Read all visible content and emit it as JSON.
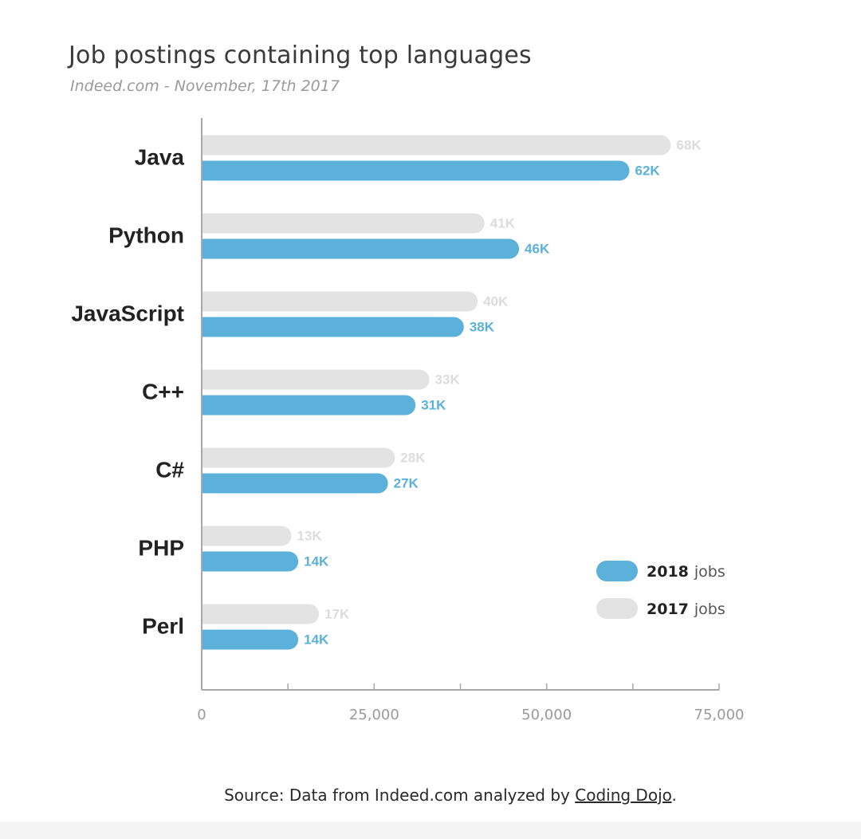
{
  "colors": {
    "series_2018": "#5bb1d9",
    "series_2017": "#e3e3e3",
    "label_2017": "#dcdcdc",
    "axis": "#a8a8a8",
    "category_text": "#222222",
    "tick_text": "#9a9a9a"
  },
  "chart_data": {
    "type": "bar",
    "orientation": "horizontal",
    "title": "Job postings containing top languages",
    "subtitle": "Indeed.com - November, 17th 2017",
    "categories": [
      "Java",
      "Python",
      "JavaScript",
      "C++",
      "C#",
      "PHP",
      "Perl"
    ],
    "series": [
      {
        "name_bold": "2017",
        "name_rest": "jobs",
        "values": [
          68000,
          41000,
          40000,
          33000,
          28000,
          13000,
          17000
        ],
        "labels": [
          "68K",
          "41K",
          "40K",
          "33K",
          "28K",
          "13K",
          "17K"
        ]
      },
      {
        "name_bold": "2018",
        "name_rest": "jobs",
        "values": [
          62000,
          46000,
          38000,
          31000,
          27000,
          14000,
          14000
        ],
        "labels": [
          "62K",
          "46K",
          "38K",
          "31K",
          "27K",
          "14K",
          "14K"
        ]
      }
    ],
    "xlim": [
      0,
      75000
    ],
    "x_ticks": [
      0,
      25000,
      50000,
      75000
    ],
    "x_tick_labels": [
      "0",
      "25,000",
      "50,000",
      "75,000"
    ],
    "grid": false,
    "legend_position": "bottom-right"
  },
  "source": {
    "prefix": "Source: Data from Indeed.com analyzed by ",
    "link_text": "Coding Dojo",
    "suffix": "."
  }
}
